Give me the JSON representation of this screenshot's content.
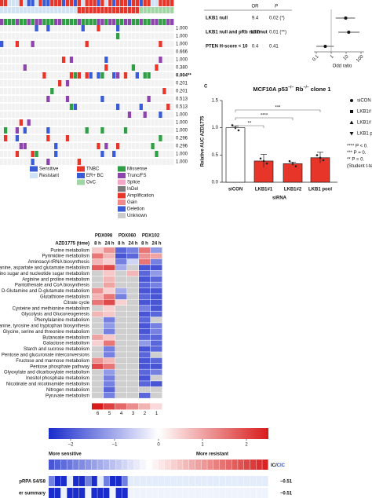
{
  "oncoprint": {
    "p_values": [
      "1.000",
      "1.000",
      "1.000",
      "0.666",
      "1.000",
      "0.380",
      "0.004**",
      "0.201",
      "0.201",
      "0.513",
      "0.513",
      "1.000",
      "1.000",
      "1.000",
      "0.296",
      "0.296",
      "1.000",
      "1.000"
    ],
    "legend": {
      "response": [
        "Sensitive",
        "Resistant"
      ],
      "tumor": [
        "TNBC",
        "ER+ BC",
        "OvC"
      ],
      "alteration": [
        "Missense",
        "Trunc/FS",
        "Splice",
        "InDel",
        "Amplification",
        "Gain",
        "Deletion",
        "Unknown"
      ]
    }
  },
  "chart_data": [
    {
      "type": "forest",
      "columns": [
        "OR",
        "P"
      ],
      "categories": [
        "LKB1 null",
        "LKB1 null and pRb null/mut",
        "PTEN H-score < 10"
      ],
      "values": [
        9.4,
        15.0,
        0.4
      ],
      "value_labels": [
        "9.4",
        "15.0",
        "0.4"
      ],
      "ci_low": [
        2,
        3,
        0.1
      ],
      "ci_high": [
        40,
        80,
        1.5
      ],
      "p_labels": [
        "0.02 (*)",
        "0.01 (**)",
        "0.41"
      ],
      "log_x": true,
      "xlim": [
        0.1,
        100
      ],
      "xticks": [
        0.1,
        1,
        10,
        100
      ],
      "xlabel": "Odd ratio"
    },
    {
      "type": "bar",
      "panel_label": "C",
      "title": [
        "MCF10A p53",
        "−/−",
        "Rb",
        "−/−",
        "clone 1"
      ],
      "categories": [
        "siCON",
        "LKB1#1",
        "LKB1#2",
        "LKB1 pool"
      ],
      "values": [
        1.0,
        0.39,
        0.34,
        0.45
      ],
      "errors": [
        0.03,
        0.12,
        0.03,
        0.1
      ],
      "colors": [
        "#ffffff",
        "#e8352a",
        "#e8352a",
        "#e8352a"
      ],
      "ylim": [
        0,
        1.5
      ],
      "yticks": [
        {
          "value": 0,
          "label": "0.0"
        },
        {
          "value": 0.5,
          "label": "0.5"
        },
        {
          "value": 1,
          "label": "1.0"
        },
        {
          "value": 1.5,
          "label": "1.5"
        }
      ],
      "ylabel": "Relative AUC AZD1775",
      "xlabel": "siRNA",
      "significance": [
        "**",
        "****",
        "***"
      ],
      "legend": [
        "siCON",
        "LKB1#",
        "LKB1#",
        "LKB1 p"
      ],
      "notes": [
        "**** P < 0.",
        "*** P = 0.",
        "** P = 0.",
        "(Student t-te"
      ]
    },
    {
      "type": "heatmap",
      "column_header": "AZD1775 (time)",
      "groups": [
        "PDX098",
        "PDX060",
        "PDX102"
      ],
      "columns": [
        "8 h",
        "24 h",
        "8 h",
        "24 h",
        "8 h",
        "24 h"
      ],
      "rows": [
        "Purine metabolism",
        "Pyrimidine metabolism",
        "Aminoacyl-tRNA biosynthesis",
        "Alanine, aspartate and glutamate metabolism",
        "Amino sugar and nucleotide sugar metabolism",
        "Arginine and proline metabolism",
        "Pantothenate and CoA biosynthesis",
        "D-Glutamine and D-glutamate metabolism",
        "Glutathione metabolism",
        "Citrate cycle",
        "Cysteine and methionine metabolism",
        "Glycolysis and Gluconeogenesis",
        "Phenylalanine metabolism",
        "Phenylalanine, tyrosine and tryptophan biosynthesis",
        "Glycine, serine and threonine metabolism",
        "Butanoate metabolism",
        "Galactose metabolism",
        "Starch and sucrose metabolism",
        "Pentose and glucuronate interconversions",
        "Fructose and mannose metabolism",
        "Pentose phosphate pathway",
        "Glyoxylate and dicarboxylate metabolism",
        "Inositol phosphate metabolism",
        "Nicotinate and nicotinamide metabolism",
        "Nitrogen metabolism",
        "Pyruvate metabolism"
      ],
      "values": [
        [
          0.6,
          1.2,
          -1.8,
          -1.5,
          1.5,
          -1.2
        ],
        [
          1.5,
          0.8,
          -2,
          -1.8,
          1.2,
          1
        ],
        [
          0.8,
          0.5,
          -1.5,
          -0.5,
          1.5,
          -1.5
        ],
        [
          1.8,
          2,
          -1,
          null,
          -2,
          -2
        ],
        [
          null,
          0.6,
          null,
          0.8,
          -1.8,
          -1.2
        ],
        [
          null,
          0.8,
          null,
          null,
          -2,
          -1.8
        ],
        [
          null,
          1,
          null,
          null,
          -1.8,
          -1.5
        ],
        [
          1.2,
          0.5,
          -1,
          null,
          -2,
          -2
        ],
        [
          0.8,
          1.5,
          -1.5,
          null,
          -1.8,
          -2
        ],
        [
          1.5,
          2,
          0.5,
          null,
          -2,
          -2
        ],
        [
          null,
          0.5,
          null,
          null,
          -1.5,
          -2
        ],
        [
          0.8,
          0.6,
          null,
          null,
          -2,
          -1.8
        ],
        [
          null,
          -1.5,
          null,
          null,
          -1.8,
          null
        ],
        [
          null,
          -1.2,
          null,
          null,
          -2,
          -1.5
        ],
        [
          null,
          -1.5,
          null,
          null,
          -2,
          -1.5
        ],
        [
          1,
          0.6,
          null,
          null,
          -1.8,
          -1.8
        ],
        [
          0.5,
          1.5,
          null,
          null,
          -1.2,
          -1.8
        ],
        [
          null,
          -1.5,
          null,
          null,
          -2,
          -1.8
        ],
        [
          null,
          -1.5,
          null,
          null,
          -1.8,
          null
        ],
        [
          1.2,
          0.8,
          null,
          null,
          -2,
          -1.8
        ],
        [
          2,
          1.5,
          null,
          null,
          -2,
          -2
        ],
        [
          null,
          -1.2,
          null,
          null,
          -1.8,
          -1.5
        ],
        [
          null,
          -1.5,
          null,
          null,
          -2,
          null
        ],
        [
          null,
          -1.5,
          null,
          null,
          -1.8,
          -2
        ],
        [
          null,
          -1.8,
          null,
          null,
          null,
          null
        ],
        [
          null,
          -1.5,
          null,
          null,
          -1.8,
          null
        ]
      ],
      "counts": [
        6,
        5,
        4,
        3,
        2,
        1
      ]
    },
    {
      "type": "colorbar",
      "xlim": [
        -2.5,
        2.5
      ],
      "xticks": [
        {
          "value": -2,
          "label": "−2"
        },
        {
          "value": -1,
          "label": "−1"
        },
        0,
        1,
        2
      ],
      "labels": [
        "More sensitive",
        "More resistant"
      ]
    }
  ],
  "summary": {
    "strip_label": [
      "IC/",
      "CIC"
    ],
    "rows": [
      {
        "label": "pRPA S4/S8",
        "value": "−0.51"
      },
      {
        "label": "er summary",
        "value": "−0.51"
      }
    ]
  }
}
